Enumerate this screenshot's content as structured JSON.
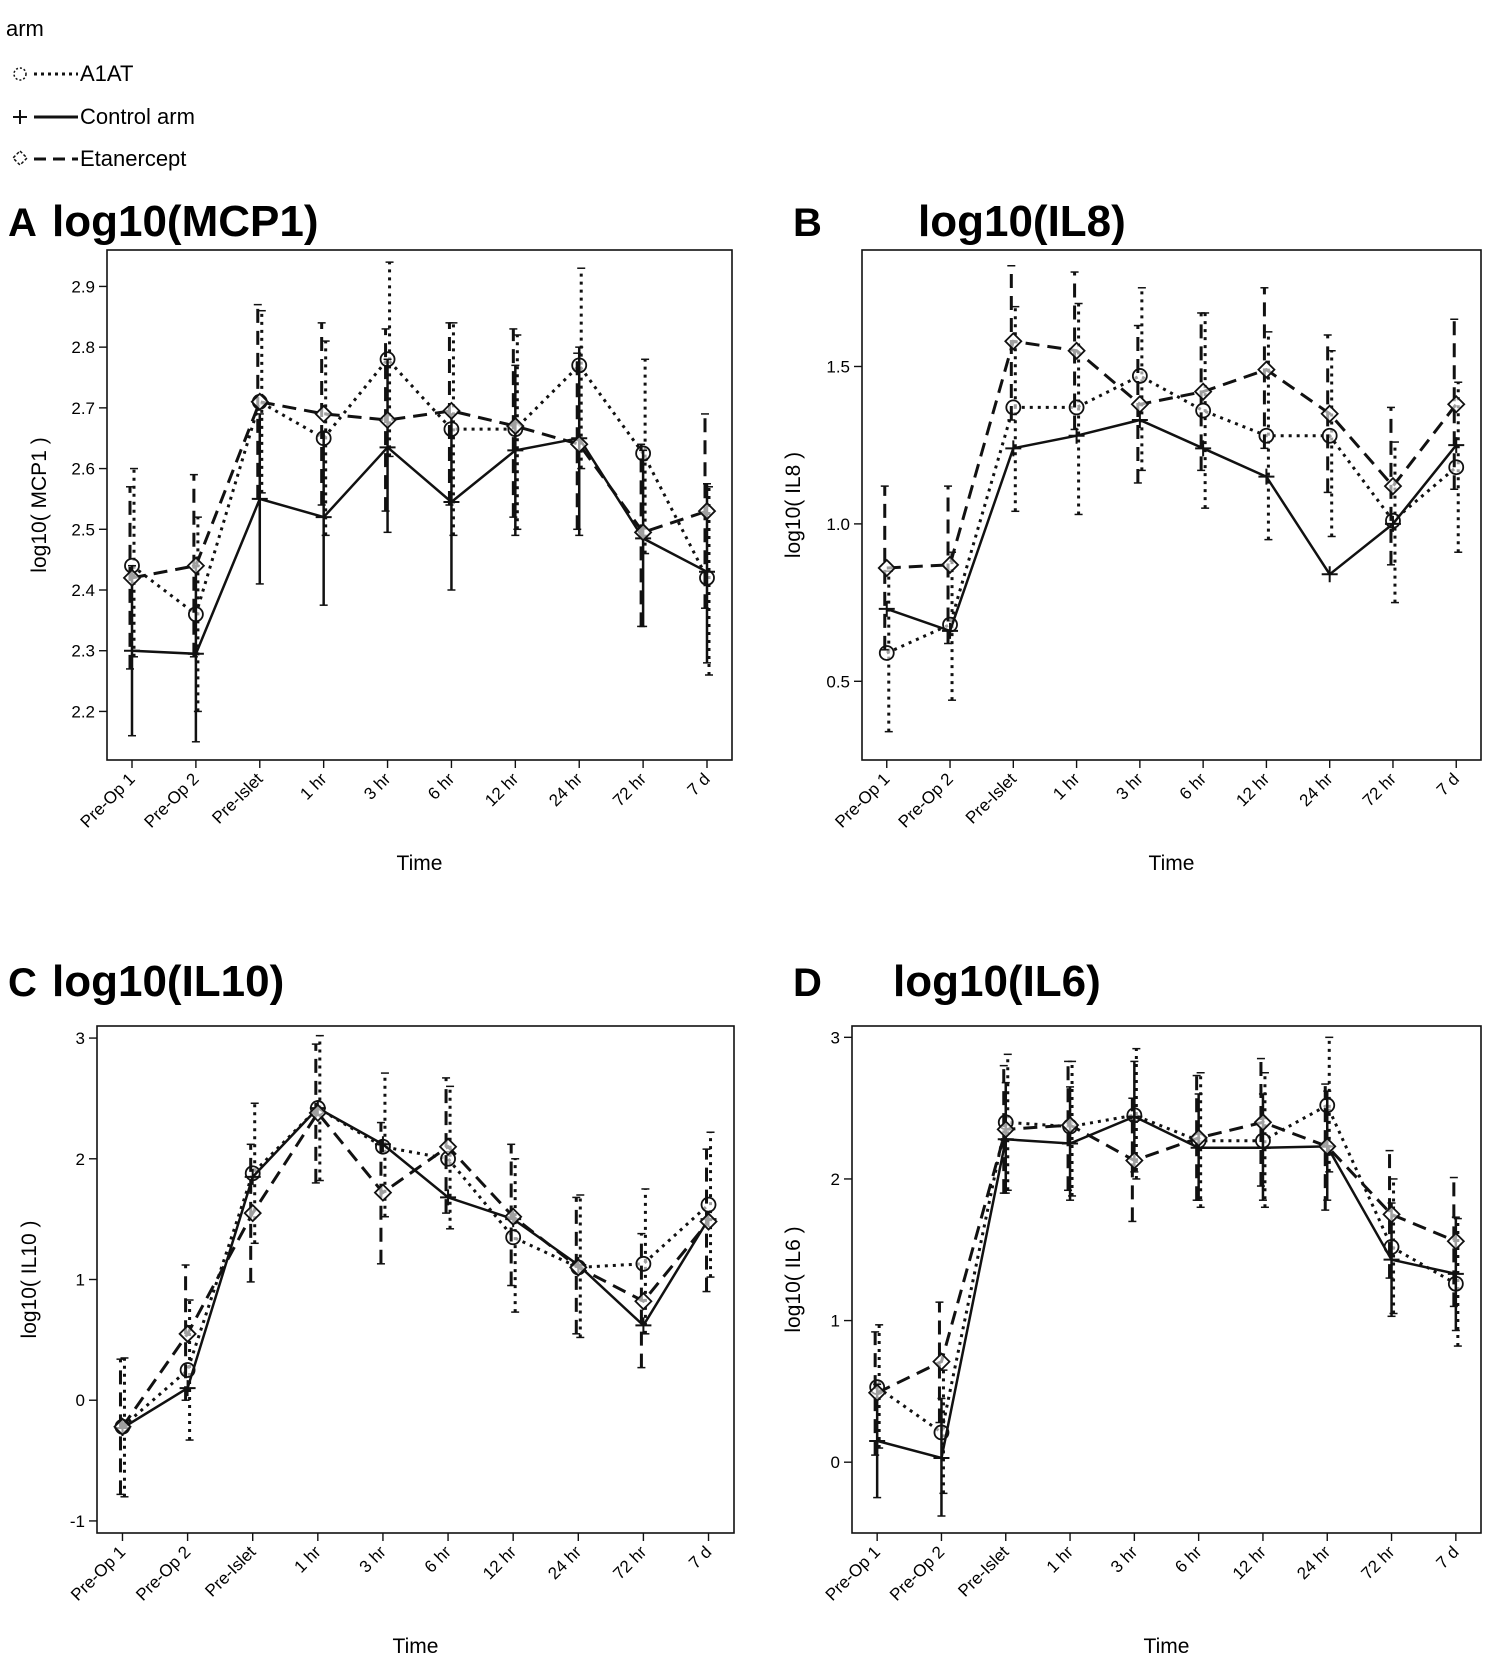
{
  "legend": {
    "title": "arm",
    "entries": [
      {
        "name": "A1AT",
        "symbol": "circle",
        "dash": "dotted"
      },
      {
        "name": "Control arm",
        "symbol": "plus",
        "dash": "solid"
      },
      {
        "name": "Etanercept",
        "symbol": "diamond",
        "dash": "dashed"
      }
    ]
  },
  "colors": {
    "line": "#111111",
    "background": "#ffffff"
  },
  "chart_data": [
    {
      "type": "line",
      "panel": "A",
      "title": "log10(MCP1)",
      "xlabel": "Time",
      "ylabel": "log10( MCP1 )",
      "categories": [
        "Pre-Op 1",
        "Pre-Op 2",
        "Pre-Islet",
        "1 hr",
        "3 hr",
        "6 hr",
        "12 hr",
        "24 hr",
        "72 hr",
        "7 d"
      ],
      "ylim": [
        2.12,
        2.96
      ],
      "yticks": [
        2.2,
        2.3,
        2.4,
        2.5,
        2.6,
        2.7,
        2.8,
        2.9
      ],
      "ytick_labels": [
        "2.2",
        "2.3",
        "2.4",
        "2.5",
        "2.6",
        "2.7",
        "2.8",
        "2.9"
      ],
      "series": [
        {
          "name": "A1AT",
          "values": [
            2.44,
            2.36,
            2.71,
            2.65,
            2.78,
            2.665,
            2.665,
            2.77,
            2.625,
            2.42
          ],
          "lower": [
            2.29,
            2.2,
            2.56,
            2.49,
            2.62,
            2.49,
            2.5,
            2.6,
            2.46,
            2.26
          ],
          "upper": [
            2.6,
            2.52,
            2.86,
            2.81,
            2.94,
            2.84,
            2.82,
            2.93,
            2.78,
            2.57
          ]
        },
        {
          "name": "Control arm",
          "values": [
            2.3,
            2.295,
            2.55,
            2.52,
            2.635,
            2.545,
            2.63,
            2.65,
            2.485,
            2.43
          ],
          "lower": [
            2.16,
            2.15,
            2.41,
            2.375,
            2.495,
            2.4,
            2.49,
            2.49,
            2.34,
            2.28
          ],
          "upper": [
            2.44,
            2.44,
            2.69,
            2.66,
            2.78,
            2.69,
            2.77,
            2.8,
            2.63,
            2.575
          ]
        },
        {
          "name": "Etanercept",
          "values": [
            2.42,
            2.44,
            2.71,
            2.69,
            2.68,
            2.695,
            2.67,
            2.64,
            2.495,
            2.53
          ],
          "lower": [
            2.27,
            2.29,
            2.55,
            2.54,
            2.53,
            2.54,
            2.52,
            2.5,
            2.34,
            2.37
          ],
          "upper": [
            2.57,
            2.59,
            2.87,
            2.84,
            2.83,
            2.84,
            2.83,
            2.79,
            2.64,
            2.69
          ]
        }
      ]
    },
    {
      "type": "line",
      "panel": "B",
      "title": "log10(IL8)",
      "xlabel": "Time",
      "ylabel": "log10( IL8 )",
      "categories": [
        "Pre-Op 1",
        "Pre-Op 2",
        "Pre-Islet",
        "1 hr",
        "3 hr",
        "6 hr",
        "12 hr",
        "24 hr",
        "72 hr",
        "7 d"
      ],
      "ylim": [
        0.25,
        1.87
      ],
      "yticks": [
        0.5,
        1.0,
        1.5
      ],
      "ytick_labels": [
        "0.5",
        "1.0",
        "1.5"
      ],
      "series": [
        {
          "name": "A1AT",
          "values": [
            0.59,
            0.68,
            1.37,
            1.37,
            1.47,
            1.36,
            1.28,
            1.28,
            1.01,
            1.18
          ],
          "lower": [
            0.34,
            0.44,
            1.04,
            1.03,
            1.17,
            1.05,
            0.95,
            0.96,
            0.75,
            0.91
          ],
          "upper": [
            0.85,
            0.91,
            1.69,
            1.7,
            1.75,
            1.67,
            1.61,
            1.55,
            1.26,
            1.45
          ]
        },
        {
          "name": "Control arm",
          "values": [
            0.73,
            0.66,
            1.24,
            1.28,
            1.33,
            1.24,
            1.15,
            0.84,
            1.0,
            1.25
          ]
        },
        {
          "name": "Etanercept",
          "values": [
            0.86,
            0.87,
            1.58,
            1.55,
            1.38,
            1.42,
            1.49,
            1.35,
            1.12,
            1.38
          ],
          "lower": [
            0.6,
            0.62,
            1.33,
            1.3,
            1.13,
            1.17,
            1.24,
            1.1,
            0.87,
            1.11
          ],
          "upper": [
            1.12,
            1.12,
            1.82,
            1.8,
            1.63,
            1.67,
            1.75,
            1.6,
            1.37,
            1.65
          ]
        }
      ]
    },
    {
      "type": "line",
      "panel": "C",
      "title": "log10(IL10)",
      "xlabel": "Time",
      "ylabel": "log10( IL10 )",
      "categories": [
        "Pre-Op 1",
        "Pre-Op 2",
        "Pre-Islet",
        "1 hr",
        "3 hr",
        "6 hr",
        "12 hr",
        "24 hr",
        "72 hr",
        "7 d"
      ],
      "ylim": [
        -1.1,
        3.1
      ],
      "yticks": [
        -1,
        0,
        1,
        2,
        3
      ],
      "ytick_labels": [
        "-1",
        "0",
        "1",
        "2",
        "3"
      ],
      "series": [
        {
          "name": "A1AT",
          "values": [
            -0.22,
            0.25,
            1.88,
            2.42,
            2.1,
            2.0,
            1.35,
            1.1,
            1.13,
            1.62
          ],
          "lower": [
            -0.8,
            -0.33,
            1.3,
            1.82,
            1.52,
            1.42,
            0.73,
            0.52,
            0.55,
            1.02
          ],
          "upper": [
            0.35,
            0.83,
            2.46,
            3.02,
            2.71,
            2.6,
            2.0,
            1.7,
            1.75,
            2.22
          ]
        },
        {
          "name": "Control arm",
          "values": [
            -0.23,
            0.1,
            1.85,
            2.42,
            2.12,
            1.68,
            1.5,
            1.12,
            0.62,
            1.5
          ]
        },
        {
          "name": "Etanercept",
          "values": [
            -0.22,
            0.55,
            1.55,
            2.38,
            1.72,
            2.1,
            1.52,
            1.1,
            0.82,
            1.48
          ],
          "lower": [
            -0.78,
            0.0,
            0.98,
            1.8,
            1.13,
            1.55,
            0.95,
            0.55,
            0.27,
            0.9
          ],
          "upper": [
            0.34,
            1.12,
            2.12,
            2.95,
            2.3,
            2.67,
            2.12,
            1.68,
            1.38,
            2.08
          ]
        }
      ]
    },
    {
      "type": "line",
      "panel": "D",
      "title": "log10(IL6)",
      "xlabel": "Time",
      "ylabel": "log10( IL6 )",
      "categories": [
        "Pre-Op 1",
        "Pre-Op 2",
        "Pre-Islet",
        "1 hr",
        "3 hr",
        "6 hr",
        "12 hr",
        "24 hr",
        "72 hr",
        "7 d"
      ],
      "ylim": [
        -0.5,
        3.08
      ],
      "yticks": [
        0,
        1,
        2,
        3
      ],
      "ytick_labels": [
        "0",
        "1",
        "2",
        "3"
      ],
      "series": [
        {
          "name": "A1AT",
          "values": [
            0.53,
            0.21,
            2.4,
            2.37,
            2.45,
            2.27,
            2.27,
            2.52,
            1.52,
            1.26
          ],
          "lower": [
            0.1,
            -0.22,
            1.92,
            1.88,
            2.0,
            1.8,
            1.8,
            2.05,
            1.05,
            0.82
          ],
          "upper": [
            0.97,
            0.65,
            2.88,
            2.83,
            2.92,
            2.75,
            2.75,
            3.0,
            2.0,
            1.72
          ]
        },
        {
          "name": "Control arm",
          "values": [
            0.15,
            0.03,
            2.28,
            2.25,
            2.44,
            2.22,
            2.22,
            2.23,
            1.43,
            1.33
          ],
          "lower": [
            -0.25,
            -0.38,
            1.9,
            1.85,
            2.05,
            1.85,
            1.85,
            1.85,
            1.03,
            0.93
          ],
          "upper": [
            0.55,
            0.45,
            2.68,
            2.65,
            2.83,
            2.6,
            2.6,
            2.62,
            1.83,
            1.73
          ]
        },
        {
          "name": "Etanercept",
          "values": [
            0.49,
            0.71,
            2.35,
            2.38,
            2.13,
            2.29,
            2.4,
            2.23,
            1.75,
            1.56
          ],
          "lower": [
            0.05,
            0.28,
            1.9,
            1.92,
            1.7,
            1.85,
            1.95,
            1.78,
            1.3,
            1.1
          ],
          "upper": [
            0.92,
            1.13,
            2.8,
            2.83,
            2.57,
            2.73,
            2.85,
            2.67,
            2.2,
            2.01
          ]
        }
      ]
    }
  ]
}
